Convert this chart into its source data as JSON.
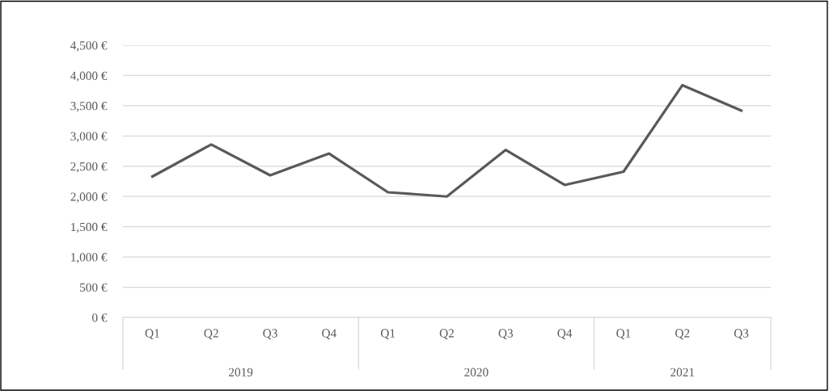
{
  "chart_data": {
    "type": "line",
    "categories": [
      "Q1",
      "Q2",
      "Q3",
      "Q4",
      "Q1",
      "Q2",
      "Q3",
      "Q4",
      "Q1",
      "Q2",
      "Q3"
    ],
    "series": [
      {
        "color": "#595959",
        "values": [
          2330,
          2860,
          2350,
          2710,
          2070,
          2000,
          2770,
          2190,
          2410,
          3840,
          3420
        ]
      }
    ],
    "annotations": [
      "2019",
      "2020",
      "2021"
    ],
    "ylim": [
      0,
      4500
    ],
    "yticks": [
      {
        "value": 0,
        "label": "0 €"
      },
      {
        "value": 500,
        "label": "500 €"
      },
      {
        "value": 1000,
        "label": "1,000 €"
      },
      {
        "value": 1500,
        "label": "1,500 €"
      },
      {
        "value": 2000,
        "label": "2,000 €"
      },
      {
        "value": 2500,
        "label": "2,500 €"
      },
      {
        "value": 3000,
        "label": "3,000 €"
      },
      {
        "value": 3500,
        "label": "3,500 €"
      },
      {
        "value": 4000,
        "label": "4,000 €"
      },
      {
        "value": 4500,
        "label": "4,500 €"
      }
    ],
    "grid": "y",
    "legend": false,
    "marker": "none",
    "line_style": "solid"
  }
}
